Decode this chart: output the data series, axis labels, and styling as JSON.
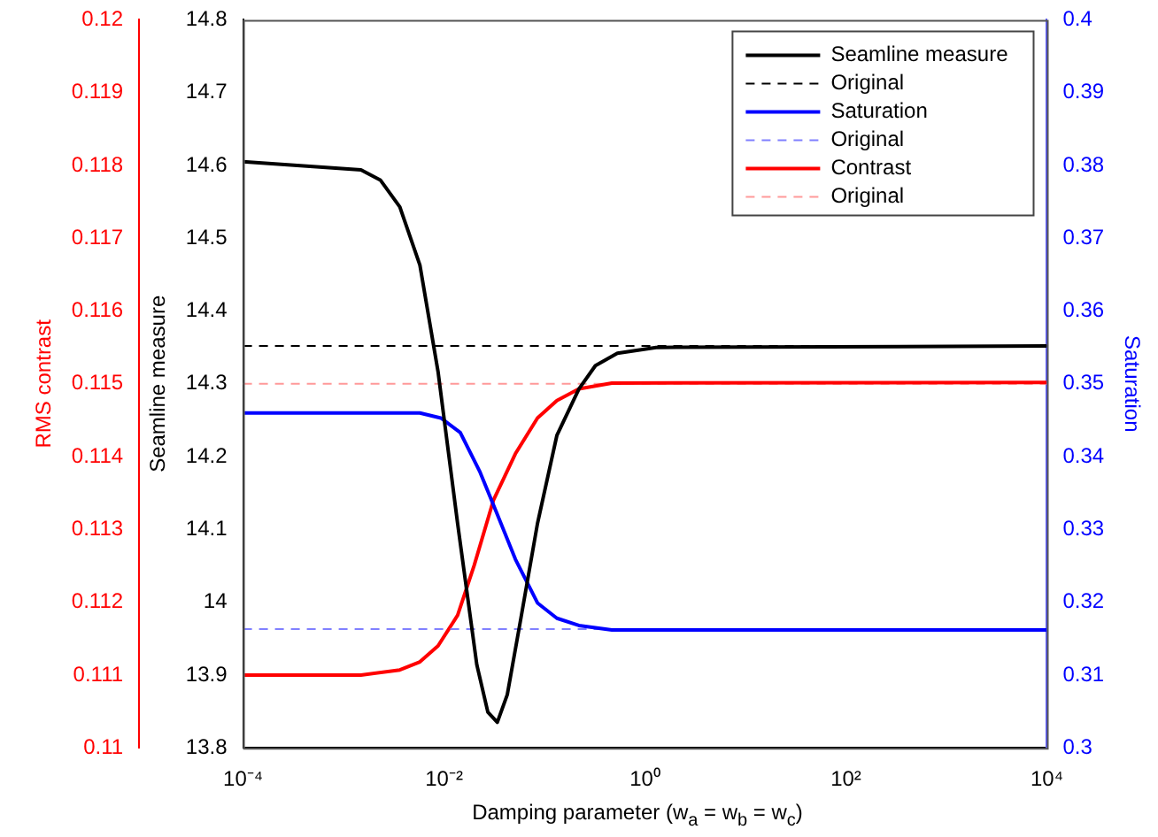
{
  "chart_data": {
    "type": "line",
    "xlabel": "Damping parameter (w$_{a}$ = w$_{b}$ = w$_{c}$)",
    "ylabel": "Seamline measure",
    "y2label": "Saturation",
    "y3label": "RMS contrast",
    "log": "x",
    "xlim": [
      0.0001,
      10000
    ],
    "xticks": [
      {
        "value": 0.0001,
        "label": "10⁻⁴"
      },
      {
        "value": 0.01,
        "label": "10⁻²"
      },
      {
        "value": 1,
        "label": "10⁰"
      },
      {
        "value": 100,
        "label": "10²"
      },
      {
        "value": 10000,
        "label": "10⁴"
      }
    ],
    "ylim": [
      13.8,
      14.8
    ],
    "yticks": [
      13.8,
      13.9,
      14,
      14.1,
      14.2,
      14.3,
      14.4,
      14.5,
      14.6,
      14.7,
      14.8
    ],
    "y2lim": [
      0.3,
      0.4
    ],
    "y2ticks": [
      0.3,
      0.31,
      0.32,
      0.33,
      0.34,
      0.35,
      0.36,
      0.37,
      0.38,
      0.39,
      0.4
    ],
    "y3lim": [
      0.11,
      0.12
    ],
    "y3ticks": [
      0.11,
      0.111,
      0.112,
      0.113,
      0.114,
      0.115,
      0.116,
      0.117,
      0.118,
      0.119,
      0.12
    ],
    "grid": false,
    "legend": "top right",
    "line_style": "solid",
    "marker": "none",
    "series": [
      {
        "name": "Seamline measure",
        "color": "#000000",
        "x": [
          0.0001,
          0.00149,
          0.00232,
          0.00363,
          0.00575,
          0.00871,
          0.01365,
          0.0212,
          0.0273,
          0.0339,
          0.0426,
          0.0582,
          0.0851,
          0.1327,
          0.22,
          0.321,
          0.531,
          1.29,
          10000
        ],
        "values": [
          14.605,
          14.594,
          14.58,
          14.543,
          14.463,
          14.317,
          14.108,
          13.914,
          13.849,
          13.835,
          13.873,
          13.978,
          14.108,
          14.229,
          14.293,
          14.325,
          14.342,
          14.35,
          14.352
        ]
      },
      {
        "name": "Saturation",
        "color": "#0000ff",
        "axis": "y2",
        "x": [
          0.0001,
          0.00575,
          0.0093,
          0.0145,
          0.0226,
          0.0331,
          0.0513,
          0.0851,
          0.1327,
          0.22,
          0.468,
          10000
        ],
        "values": [
          0.346,
          0.346,
          0.3453,
          0.3433,
          0.338,
          0.3324,
          0.3259,
          0.3199,
          0.3178,
          0.3168,
          0.3162,
          0.3162
        ]
      },
      {
        "name": "Contrast",
        "color": "#ff0000",
        "axis": "y3",
        "x": [
          0.0001,
          0.00149,
          0.00363,
          0.00575,
          0.00871,
          0.01365,
          0.02,
          0.031,
          0.0513,
          0.0851,
          0.1327,
          0.22,
          0.468,
          10000
        ],
        "values": [
          0.111,
          0.111,
          0.11107,
          0.11118,
          0.1114,
          0.11182,
          0.11251,
          0.1134,
          0.11404,
          0.11453,
          0.11477,
          0.11493,
          0.11501,
          0.11502
        ]
      }
    ],
    "ref_lines": [
      {
        "axis": "y",
        "value": 14.352,
        "label": "Original",
        "color": "#000000",
        "line_style": "dashed"
      },
      {
        "axis": "y2",
        "value": 0.3163,
        "label": "Original",
        "color": "#8080ff",
        "line_style": "dashed"
      },
      {
        "axis": "y3",
        "value": 0.115,
        "label": "Original",
        "color": "#ff9999",
        "line_style": "dashed"
      }
    ]
  }
}
